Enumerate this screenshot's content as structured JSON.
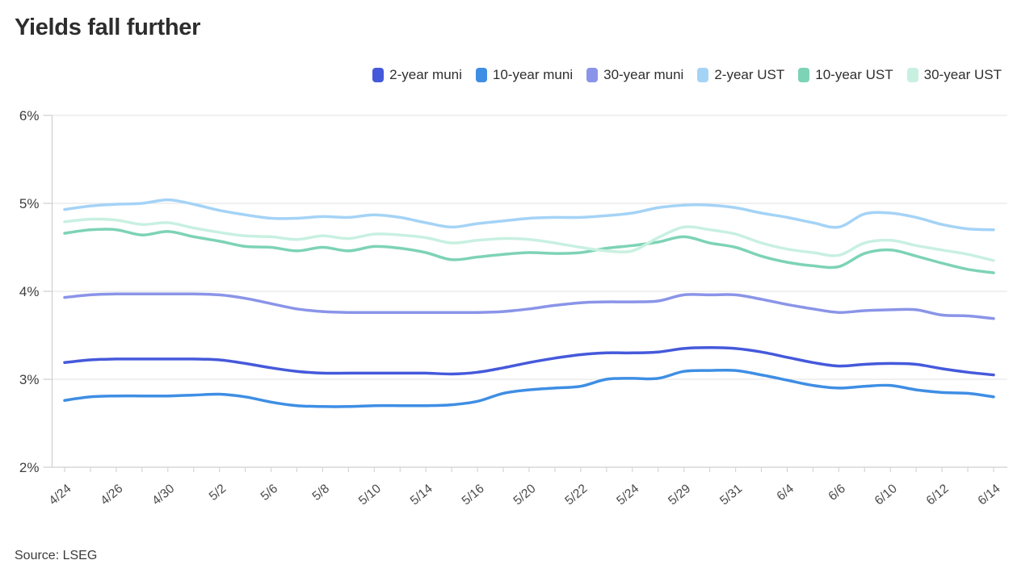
{
  "title": "Yields fall further",
  "source": "Source: LSEG",
  "chart_data": {
    "type": "line",
    "title": "Yields fall further",
    "xlabel": "",
    "ylabel": "",
    "ylim": [
      2,
      6
    ],
    "yticks": [
      6,
      5,
      4,
      3,
      2
    ],
    "ytick_suffix": "%",
    "grid": "horizontal",
    "legend_position": "top-right",
    "x_tick_label_every": 2,
    "x": [
      "4/24",
      "4/25",
      "4/26",
      "4/29",
      "4/30",
      "5/1",
      "5/2",
      "5/3",
      "5/6",
      "5/7",
      "5/8",
      "5/9",
      "5/10",
      "5/13",
      "5/14",
      "5/15",
      "5/16",
      "5/17",
      "5/20",
      "5/21",
      "5/22",
      "5/23",
      "5/24",
      "5/28",
      "5/29",
      "5/30",
      "5/31",
      "6/3",
      "6/4",
      "6/5",
      "6/6",
      "6/7",
      "6/10",
      "6/11",
      "6/12",
      "6/13",
      "6/14"
    ],
    "x_labels_shown": [
      "4/24",
      "4/26",
      "4/30",
      "5/2",
      "5/6",
      "5/8",
      "5/10",
      "5/14",
      "5/16",
      "5/20",
      "5/22",
      "5/24",
      "5/29",
      "5/31",
      "6/4",
      "6/6",
      "6/10",
      "6/12",
      "6/14"
    ],
    "series": [
      {
        "name": "2-year muni",
        "color": "#4559DB",
        "values": [
          3.19,
          3.22,
          3.23,
          3.23,
          3.23,
          3.23,
          3.22,
          3.18,
          3.13,
          3.09,
          3.07,
          3.07,
          3.07,
          3.07,
          3.07,
          3.06,
          3.08,
          3.13,
          3.19,
          3.24,
          3.28,
          3.3,
          3.3,
          3.31,
          3.35,
          3.36,
          3.35,
          3.31,
          3.25,
          3.19,
          3.15,
          3.17,
          3.18,
          3.17,
          3.12,
          3.08,
          3.05
        ]
      },
      {
        "name": "10-year muni",
        "color": "#3E8EE4",
        "values": [
          2.76,
          2.8,
          2.81,
          2.81,
          2.81,
          2.82,
          2.83,
          2.8,
          2.74,
          2.7,
          2.69,
          2.69,
          2.7,
          2.7,
          2.7,
          2.71,
          2.75,
          2.84,
          2.88,
          2.9,
          2.92,
          3.0,
          3.01,
          3.01,
          3.09,
          3.1,
          3.1,
          3.05,
          2.99,
          2.93,
          2.9,
          2.92,
          2.93,
          2.88,
          2.85,
          2.84,
          2.8
        ]
      },
      {
        "name": "30-year muni",
        "color": "#8A94E8",
        "values": [
          3.93,
          3.96,
          3.97,
          3.97,
          3.97,
          3.97,
          3.96,
          3.92,
          3.86,
          3.8,
          3.77,
          3.76,
          3.76,
          3.76,
          3.76,
          3.76,
          3.76,
          3.77,
          3.8,
          3.84,
          3.87,
          3.88,
          3.88,
          3.89,
          3.96,
          3.96,
          3.96,
          3.91,
          3.85,
          3.8,
          3.76,
          3.78,
          3.79,
          3.79,
          3.73,
          3.72,
          3.69
        ]
      },
      {
        "name": "2-year UST",
        "color": "#A4D3F6",
        "values": [
          4.93,
          4.97,
          4.99,
          5.0,
          5.04,
          4.99,
          4.92,
          4.87,
          4.83,
          4.83,
          4.85,
          4.84,
          4.87,
          4.84,
          4.78,
          4.73,
          4.77,
          4.8,
          4.83,
          4.84,
          4.84,
          4.86,
          4.89,
          4.95,
          4.98,
          4.98,
          4.95,
          4.89,
          4.84,
          4.78,
          4.73,
          4.88,
          4.89,
          4.84,
          4.76,
          4.71,
          4.7
        ]
      },
      {
        "name": "10-year UST",
        "color": "#7DD3B5",
        "values": [
          4.66,
          4.7,
          4.7,
          4.64,
          4.68,
          4.62,
          4.57,
          4.51,
          4.5,
          4.46,
          4.5,
          4.46,
          4.51,
          4.49,
          4.44,
          4.36,
          4.39,
          4.42,
          4.44,
          4.43,
          4.44,
          4.49,
          4.52,
          4.56,
          4.62,
          4.55,
          4.5,
          4.4,
          4.33,
          4.29,
          4.28,
          4.43,
          4.47,
          4.4,
          4.32,
          4.25,
          4.21
        ]
      },
      {
        "name": "30-year UST",
        "color": "#C8F0E1",
        "values": [
          4.79,
          4.82,
          4.81,
          4.76,
          4.78,
          4.72,
          4.67,
          4.63,
          4.62,
          4.59,
          4.63,
          4.6,
          4.65,
          4.64,
          4.61,
          4.55,
          4.58,
          4.6,
          4.59,
          4.55,
          4.5,
          4.46,
          4.46,
          4.61,
          4.73,
          4.7,
          4.65,
          4.55,
          4.48,
          4.44,
          4.41,
          4.55,
          4.58,
          4.52,
          4.47,
          4.42,
          4.35
        ]
      }
    ]
  }
}
